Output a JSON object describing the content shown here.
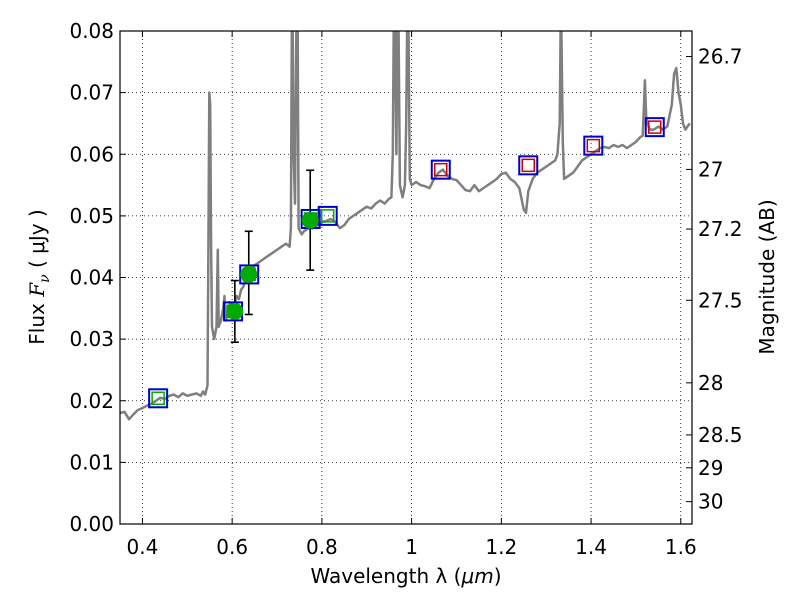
{
  "chart_data": {
    "type": "scatter",
    "xlabel_prefix": "Wavelength  λ (",
    "xlabel_unit": "μm",
    "xlabel_suffix": ")",
    "ylabel_prefix": "Flux  ",
    "ylabel_symbol": "F",
    "ylabel_sub": "ν",
    "ylabel_suffix": "  ( μJy )",
    "ylabel_right": "Magnitude (AB)",
    "xlim": [
      0.35,
      1.625
    ],
    "ylim": [
      0.0,
      0.08
    ],
    "grid": true,
    "x_ticks": [
      {
        "value": 0.4,
        "label": "0.4"
      },
      {
        "value": 0.6,
        "label": "0.6"
      },
      {
        "value": 0.8,
        "label": "0.8"
      },
      {
        "value": 1.0,
        "label": "1"
      },
      {
        "value": 1.2,
        "label": "1.2"
      },
      {
        "value": 1.4,
        "label": "1.4"
      },
      {
        "value": 1.6,
        "label": "1.6"
      }
    ],
    "y_ticks": [
      {
        "value": 0.0,
        "label": "0.00"
      },
      {
        "value": 0.01,
        "label": "0.01"
      },
      {
        "value": 0.02,
        "label": "0.02"
      },
      {
        "value": 0.03,
        "label": "0.03"
      },
      {
        "value": 0.04,
        "label": "0.04"
      },
      {
        "value": 0.05,
        "label": "0.05"
      },
      {
        "value": 0.06,
        "label": "0.06"
      },
      {
        "value": 0.07,
        "label": "0.07"
      },
      {
        "value": 0.08,
        "label": "0.08"
      }
    ],
    "mag_ticks": [
      {
        "value": 26.7,
        "label": "26.7"
      },
      {
        "value": 27.0,
        "label": "27"
      },
      {
        "value": 27.2,
        "label": "27.2"
      },
      {
        "value": 27.5,
        "label": "27.5"
      },
      {
        "value": 28.0,
        "label": "28"
      },
      {
        "value": 28.5,
        "label": "28.5"
      },
      {
        "value": 29.0,
        "label": "29"
      },
      {
        "value": 30.0,
        "label": "30"
      }
    ],
    "model_spectrum": {
      "color": "#7f7f7f",
      "points": [
        [
          0.35,
          0.018
        ],
        [
          0.36,
          0.0182
        ],
        [
          0.37,
          0.017
        ],
        [
          0.38,
          0.0178
        ],
        [
          0.39,
          0.0185
        ],
        [
          0.4,
          0.0188
        ],
        [
          0.41,
          0.0192
        ],
        [
          0.42,
          0.0195
        ],
        [
          0.43,
          0.02
        ],
        [
          0.44,
          0.0205
        ],
        [
          0.45,
          0.0203
        ],
        [
          0.46,
          0.0208
        ],
        [
          0.47,
          0.021
        ],
        [
          0.48,
          0.0206
        ],
        [
          0.49,
          0.0212
        ],
        [
          0.5,
          0.0208
        ],
        [
          0.51,
          0.021
        ],
        [
          0.52,
          0.0212
        ],
        [
          0.53,
          0.0208
        ],
        [
          0.535,
          0.0215
        ],
        [
          0.54,
          0.021
        ],
        [
          0.545,
          0.0225
        ],
        [
          0.547,
          0.045
        ],
        [
          0.549,
          0.07
        ],
        [
          0.551,
          0.068
        ],
        [
          0.553,
          0.045
        ],
        [
          0.555,
          0.032
        ],
        [
          0.56,
          0.03
        ],
        [
          0.565,
          0.032
        ],
        [
          0.568,
          0.0445
        ],
        [
          0.57,
          0.032
        ],
        [
          0.575,
          0.033
        ],
        [
          0.58,
          0.035
        ],
        [
          0.583,
          0.037
        ],
        [
          0.585,
          0.033
        ],
        [
          0.59,
          0.034
        ],
        [
          0.595,
          0.036
        ],
        [
          0.6,
          0.035
        ],
        [
          0.605,
          0.0355
        ],
        [
          0.61,
          0.037
        ],
        [
          0.615,
          0.0365
        ],
        [
          0.62,
          0.038
        ],
        [
          0.625,
          0.0385
        ],
        [
          0.63,
          0.04
        ],
        [
          0.635,
          0.0398
        ],
        [
          0.64,
          0.0405
        ],
        [
          0.645,
          0.041
        ],
        [
          0.65,
          0.042
        ],
        [
          0.66,
          0.0425
        ],
        [
          0.67,
          0.043
        ],
        [
          0.68,
          0.0435
        ],
        [
          0.69,
          0.044
        ],
        [
          0.7,
          0.0445
        ],
        [
          0.71,
          0.045
        ],
        [
          0.72,
          0.0455
        ],
        [
          0.728,
          0.045
        ],
        [
          0.731,
          0.048
        ],
        [
          0.733,
          0.08
        ],
        [
          0.735,
          0.08
        ],
        [
          0.737,
          0.06
        ],
        [
          0.74,
          0.052
        ],
        [
          0.743,
          0.08
        ],
        [
          0.746,
          0.08
        ],
        [
          0.748,
          0.048
        ],
        [
          0.755,
          0.047
        ],
        [
          0.76,
          0.0475
        ],
        [
          0.77,
          0.048
        ],
        [
          0.78,
          0.048
        ],
        [
          0.79,
          0.0485
        ],
        [
          0.8,
          0.049
        ],
        [
          0.81,
          0.0492
        ],
        [
          0.82,
          0.0495
        ],
        [
          0.83,
          0.049
        ],
        [
          0.84,
          0.048
        ],
        [
          0.85,
          0.0485
        ],
        [
          0.86,
          0.0495
        ],
        [
          0.87,
          0.05
        ],
        [
          0.88,
          0.0505
        ],
        [
          0.89,
          0.051
        ],
        [
          0.9,
          0.0515
        ],
        [
          0.91,
          0.0512
        ],
        [
          0.92,
          0.052
        ],
        [
          0.93,
          0.0525
        ],
        [
          0.94,
          0.052
        ],
        [
          0.95,
          0.0528
        ],
        [
          0.955,
          0.053
        ],
        [
          0.958,
          0.06
        ],
        [
          0.96,
          0.08
        ],
        [
          0.963,
          0.08
        ],
        [
          0.966,
          0.06
        ],
        [
          0.968,
          0.08
        ],
        [
          0.971,
          0.08
        ],
        [
          0.974,
          0.055
        ],
        [
          0.98,
          0.053
        ],
        [
          0.985,
          0.055
        ],
        [
          0.988,
          0.065
        ],
        [
          0.99,
          0.08
        ],
        [
          0.993,
          0.08
        ],
        [
          0.996,
          0.056
        ],
        [
          1.0,
          0.055
        ],
        [
          1.01,
          0.0555
        ],
        [
          1.02,
          0.055
        ],
        [
          1.03,
          0.0548
        ],
        [
          1.04,
          0.0545
        ],
        [
          1.05,
          0.056
        ],
        [
          1.06,
          0.057
        ],
        [
          1.07,
          0.0575
        ],
        [
          1.08,
          0.0565
        ],
        [
          1.09,
          0.056
        ],
        [
          1.1,
          0.0558
        ],
        [
          1.11,
          0.055
        ],
        [
          1.12,
          0.0542
        ],
        [
          1.13,
          0.054
        ],
        [
          1.14,
          0.055
        ],
        [
          1.15,
          0.054
        ],
        [
          1.16,
          0.0545
        ],
        [
          1.17,
          0.055
        ],
        [
          1.18,
          0.0555
        ],
        [
          1.19,
          0.056
        ],
        [
          1.2,
          0.0568
        ],
        [
          1.21,
          0.057
        ],
        [
          1.22,
          0.056
        ],
        [
          1.23,
          0.0555
        ],
        [
          1.24,
          0.0545
        ],
        [
          1.25,
          0.051
        ],
        [
          1.255,
          0.0505
        ],
        [
          1.26,
          0.054
        ],
        [
          1.27,
          0.056
        ],
        [
          1.28,
          0.057
        ],
        [
          1.29,
          0.0575
        ],
        [
          1.3,
          0.058
        ],
        [
          1.31,
          0.0585
        ],
        [
          1.32,
          0.059
        ],
        [
          1.325,
          0.06
        ],
        [
          1.33,
          0.065
        ],
        [
          1.332,
          0.08
        ],
        [
          1.334,
          0.08
        ],
        [
          1.337,
          0.062
        ],
        [
          1.34,
          0.056
        ],
        [
          1.35,
          0.0565
        ],
        [
          1.36,
          0.057
        ],
        [
          1.37,
          0.058
        ],
        [
          1.38,
          0.059
        ],
        [
          1.39,
          0.0595
        ],
        [
          1.4,
          0.06
        ],
        [
          1.41,
          0.0605
        ],
        [
          1.42,
          0.061
        ],
        [
          1.43,
          0.0612
        ],
        [
          1.44,
          0.061
        ],
        [
          1.45,
          0.0615
        ],
        [
          1.46,
          0.0612
        ],
        [
          1.47,
          0.0615
        ],
        [
          1.48,
          0.061
        ],
        [
          1.49,
          0.0615
        ],
        [
          1.5,
          0.062
        ],
        [
          1.51,
          0.0628
        ],
        [
          1.515,
          0.063
        ],
        [
          1.518,
          0.068
        ],
        [
          1.52,
          0.072
        ],
        [
          1.523,
          0.066
        ],
        [
          1.53,
          0.064
        ],
        [
          1.54,
          0.064
        ],
        [
          1.55,
          0.0645
        ],
        [
          1.56,
          0.064
        ],
        [
          1.57,
          0.0645
        ],
        [
          1.58,
          0.068
        ],
        [
          1.585,
          0.073
        ],
        [
          1.59,
          0.074
        ],
        [
          1.595,
          0.07
        ],
        [
          1.6,
          0.068
        ],
        [
          1.605,
          0.065
        ],
        [
          1.61,
          0.064
        ],
        [
          1.615,
          0.0645
        ],
        [
          1.62,
          0.065
        ]
      ]
    },
    "model_photometry": {
      "marker": "square",
      "outer_color": "#0000cc",
      "points": [
        {
          "x": 0.435,
          "y": 0.0204,
          "inner_color": "#00aa00"
        },
        {
          "x": 0.602,
          "y": 0.0345,
          "inner_color": "#00aa00"
        },
        {
          "x": 0.638,
          "y": 0.0405,
          "inner_color": "#00aa00"
        },
        {
          "x": 0.775,
          "y": 0.0495,
          "inner_color": "#00aa00"
        },
        {
          "x": 0.813,
          "y": 0.05,
          "inner_color": "#00aa00"
        },
        {
          "x": 1.065,
          "y": 0.0575,
          "inner_color": "#cc0000"
        },
        {
          "x": 1.26,
          "y": 0.0582,
          "inner_color": "#cc0000"
        },
        {
          "x": 1.405,
          "y": 0.0614,
          "inner_color": "#cc0000"
        },
        {
          "x": 1.542,
          "y": 0.0644,
          "inner_color": "#cc0000"
        }
      ]
    },
    "observed_photometry": {
      "marker": "circle",
      "color": "#00aa00",
      "points": [
        {
          "x": 0.606,
          "y": 0.0345,
          "yerr_low": 0.0295,
          "yerr_high": 0.0395
        },
        {
          "x": 0.637,
          "y": 0.0405,
          "yerr_low": 0.034,
          "yerr_high": 0.0475
        },
        {
          "x": 0.774,
          "y": 0.0493,
          "yerr_low": 0.0412,
          "yerr_high": 0.0574
        }
      ]
    }
  }
}
